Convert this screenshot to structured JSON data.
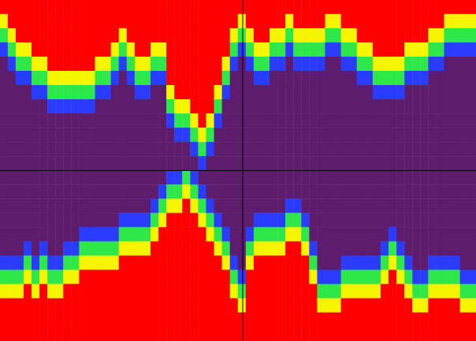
{
  "chart_data": {
    "type": "heatmap",
    "tick_labels": false,
    "color_range": [
      0,
      4
    ],
    "cells": [
      [
        4,
        3,
        2,
        1,
        0,
        0,
        0,
        0,
        0,
        0,
        0,
        0,
        0,
        0,
        0,
        0,
        0,
        0,
        1,
        2,
        3,
        4,
        4,
        4
      ],
      [
        4,
        4,
        3,
        2,
        1,
        0,
        0,
        0,
        0,
        0,
        0,
        0,
        0,
        0,
        0,
        0,
        0,
        0,
        1,
        2,
        3,
        4,
        4,
        4
      ],
      [
        4,
        4,
        4,
        3,
        2,
        1,
        0,
        0,
        0,
        0,
        0,
        0,
        0,
        0,
        0,
        0,
        0,
        0,
        1,
        2,
        3,
        4,
        4,
        4
      ],
      [
        4,
        4,
        4,
        3,
        2,
        1,
        0,
        0,
        0,
        0,
        0,
        0,
        0,
        0,
        0,
        0,
        0,
        1,
        2,
        3,
        4,
        4,
        4,
        4
      ],
      [
        4,
        4,
        4,
        4,
        3,
        2,
        1,
        0,
        0,
        0,
        0,
        0,
        0,
        0,
        0,
        0,
        0,
        0,
        1,
        2,
        3,
        4,
        4,
        4
      ],
      [
        4,
        4,
        4,
        4,
        3,
        2,
        1,
        0,
        0,
        0,
        0,
        0,
        0,
        0,
        0,
        0,
        0,
        1,
        2,
        3,
        4,
        4,
        4,
        4
      ],
      [
        4,
        4,
        4,
        4,
        4,
        3,
        2,
        1,
        0,
        0,
        0,
        0,
        0,
        0,
        0,
        0,
        0,
        0,
        1,
        2,
        3,
        4,
        4,
        4
      ],
      [
        4,
        4,
        4,
        4,
        4,
        3,
        2,
        1,
        0,
        0,
        0,
        0,
        0,
        0,
        0,
        0,
        0,
        0,
        1,
        2,
        3,
        4,
        4,
        4
      ],
      [
        4,
        4,
        4,
        4,
        4,
        3,
        2,
        1,
        0,
        0,
        0,
        0,
        0,
        0,
        0,
        0,
        0,
        1,
        2,
        3,
        4,
        4,
        4,
        4
      ],
      [
        4,
        4,
        4,
        4,
        4,
        3,
        2,
        1,
        0,
        0,
        0,
        0,
        0,
        0,
        0,
        0,
        0,
        1,
        2,
        3,
        4,
        4,
        4,
        4
      ],
      [
        4,
        4,
        4,
        4,
        4,
        3,
        2,
        1,
        0,
        0,
        0,
        0,
        0,
        0,
        0,
        0,
        1,
        2,
        3,
        4,
        4,
        4,
        4,
        4
      ],
      [
        4,
        4,
        4,
        4,
        4,
        3,
        2,
        1,
        0,
        0,
        0,
        0,
        0,
        0,
        0,
        0,
        1,
        2,
        3,
        4,
        4,
        4,
        4,
        4
      ],
      [
        4,
        4,
        4,
        4,
        3,
        2,
        1,
        0,
        0,
        0,
        0,
        0,
        0,
        0,
        0,
        0,
        1,
        2,
        3,
        4,
        4,
        4,
        4,
        4
      ],
      [
        4,
        4,
        4,
        4,
        3,
        2,
        1,
        0,
        0,
        0,
        0,
        0,
        0,
        0,
        0,
        0,
        1,
        2,
        3,
        4,
        4,
        4,
        4,
        4
      ],
      [
        4,
        4,
        4,
        3,
        2,
        1,
        0,
        0,
        0,
        0,
        0,
        0,
        0,
        0,
        0,
        0,
        1,
        2,
        3,
        4,
        4,
        4,
        4,
        4
      ],
      [
        4,
        4,
        3,
        2,
        1,
        0,
        0,
        0,
        0,
        0,
        0,
        0,
        0,
        0,
        0,
        1,
        2,
        3,
        4,
        4,
        4,
        4,
        4,
        4
      ],
      [
        4,
        4,
        4,
        3,
        2,
        1,
        0,
        0,
        0,
        0,
        0,
        0,
        0,
        0,
        0,
        1,
        2,
        3,
        4,
        4,
        4,
        4,
        4,
        4
      ],
      [
        4,
        4,
        4,
        4,
        3,
        2,
        1,
        0,
        0,
        0,
        0,
        0,
        0,
        0,
        0,
        1,
        2,
        3,
        4,
        4,
        4,
        4,
        4,
        4
      ],
      [
        4,
        4,
        4,
        4,
        3,
        2,
        1,
        0,
        0,
        0,
        0,
        0,
        0,
        0,
        0,
        1,
        2,
        3,
        4,
        4,
        4,
        4,
        4,
        4
      ],
      [
        4,
        4,
        4,
        3,
        2,
        1,
        0,
        0,
        0,
        0,
        0,
        0,
        0,
        0,
        1,
        2,
        3,
        4,
        4,
        4,
        4,
        4,
        4,
        4
      ],
      [
        4,
        4,
        4,
        3,
        2,
        1,
        0,
        0,
        0,
        0,
        0,
        0,
        0,
        1,
        2,
        3,
        4,
        4,
        4,
        4,
        4,
        4,
        4,
        4
      ],
      [
        4,
        4,
        4,
        4,
        4,
        4,
        3,
        2,
        1,
        0,
        0,
        0,
        1,
        2,
        3,
        4,
        4,
        4,
        4,
        4,
        4,
        4,
        4,
        4
      ],
      [
        4,
        4,
        4,
        4,
        4,
        4,
        4,
        3,
        2,
        1,
        0,
        0,
        1,
        2,
        3,
        4,
        4,
        4,
        4,
        4,
        4,
        4,
        4,
        4
      ],
      [
        4,
        4,
        4,
        4,
        4,
        4,
        4,
        3,
        2,
        1,
        0,
        0,
        2,
        3,
        4,
        4,
        4,
        4,
        4,
        4,
        4,
        4,
        4,
        4
      ],
      [
        4,
        4,
        4,
        4,
        4,
        4,
        4,
        4,
        3,
        2,
        1,
        0,
        1,
        2,
        3,
        4,
        4,
        4,
        4,
        4,
        4,
        4,
        4,
        4
      ],
      [
        4,
        4,
        4,
        4,
        4,
        4,
        4,
        4,
        4,
        3,
        2,
        1,
        0,
        1,
        2,
        3,
        4,
        4,
        4,
        4,
        4,
        4,
        4,
        4
      ],
      [
        4,
        4,
        4,
        4,
        4,
        4,
        4,
        4,
        3,
        2,
        1,
        0,
        0,
        0,
        1,
        2,
        3,
        4,
        4,
        4,
        4,
        4,
        4,
        4
      ],
      [
        4,
        4,
        4,
        4,
        4,
        4,
        3,
        2,
        1,
        0,
        0,
        0,
        0,
        0,
        0,
        1,
        2,
        3,
        4,
        4,
        4,
        4,
        4,
        4
      ],
      [
        4,
        4,
        4,
        4,
        3,
        2,
        1,
        0,
        0,
        0,
        0,
        0,
        0,
        0,
        0,
        0,
        1,
        2,
        3,
        4,
        4,
        4,
        4,
        4
      ],
      [
        4,
        4,
        3,
        2,
        1,
        0,
        0,
        0,
        0,
        0,
        0,
        0,
        0,
        0,
        0,
        0,
        0,
        0,
        1,
        2,
        3,
        4,
        4,
        4
      ],
      [
        4,
        3,
        2,
        1,
        0,
        0,
        0,
        0,
        0,
        0,
        0,
        0,
        0,
        0,
        0,
        0,
        0,
        0,
        0,
        1,
        2,
        3,
        4,
        4
      ],
      [
        4,
        4,
        3,
        2,
        1,
        0,
        0,
        0,
        0,
        0,
        0,
        0,
        0,
        0,
        0,
        0,
        1,
        2,
        3,
        4,
        4,
        4,
        4,
        4
      ],
      [
        4,
        4,
        4,
        3,
        2,
        1,
        0,
        0,
        0,
        0,
        0,
        0,
        0,
        0,
        0,
        1,
        2,
        3,
        4,
        4,
        4,
        4,
        4,
        4
      ],
      [
        4,
        4,
        4,
        3,
        2,
        1,
        0,
        0,
        0,
        0,
        0,
        0,
        0,
        0,
        0,
        1,
        2,
        3,
        4,
        4,
        4,
        4,
        4,
        4
      ],
      [
        4,
        4,
        3,
        2,
        1,
        0,
        0,
        0,
        0,
        0,
        0,
        0,
        0,
        0,
        0,
        1,
        2,
        3,
        4,
        4,
        4,
        4,
        4,
        4
      ],
      [
        4,
        4,
        3,
        2,
        1,
        0,
        0,
        0,
        0,
        0,
        0,
        0,
        0,
        0,
        0,
        1,
        2,
        3,
        4,
        4,
        4,
        4,
        4,
        4
      ],
      [
        4,
        3,
        2,
        1,
        0,
        0,
        0,
        0,
        0,
        0,
        0,
        0,
        0,
        0,
        1,
        2,
        3,
        4,
        4,
        4,
        4,
        4,
        4,
        4
      ],
      [
        4,
        4,
        3,
        2,
        1,
        0,
        0,
        0,
        0,
        0,
        0,
        0,
        0,
        0,
        1,
        2,
        3,
        4,
        4,
        4,
        4,
        4,
        4,
        4
      ],
      [
        4,
        4,
        3,
        2,
        1,
        0,
        0,
        0,
        0,
        0,
        0,
        0,
        0,
        0,
        0,
        1,
        2,
        3,
        4,
        4,
        4,
        4,
        4,
        4
      ],
      [
        4,
        4,
        3,
        2,
        1,
        0,
        0,
        0,
        0,
        0,
        0,
        0,
        0,
        0,
        0,
        0,
        0,
        1,
        2,
        3,
        4,
        4,
        4,
        4
      ],
      [
        4,
        4,
        3,
        2,
        1,
        0,
        0,
        0,
        0,
        0,
        0,
        0,
        0,
        0,
        0,
        0,
        0,
        0,
        0,
        1,
        2,
        3,
        4,
        4
      ],
      [
        4,
        3,
        2,
        1,
        0,
        0,
        0,
        0,
        0,
        0,
        0,
        0,
        0,
        0,
        0,
        0,
        0,
        0,
        0,
        1,
        2,
        3,
        4,
        4
      ],
      [
        4,
        3,
        2,
        1,
        0,
        0,
        0,
        0,
        0,
        0,
        0,
        0,
        0,
        0,
        0,
        0,
        0,
        0,
        0,
        1,
        2,
        3,
        4,
        4
      ],
      [
        4,
        4,
        3,
        2,
        1,
        0,
        0,
        0,
        0,
        0,
        0,
        0,
        0,
        0,
        0,
        0,
        0,
        0,
        1,
        2,
        3,
        4,
        4,
        4
      ],
      [
        4,
        4,
        3,
        2,
        1,
        0,
        0,
        0,
        0,
        0,
        0,
        0,
        0,
        0,
        0,
        0,
        0,
        0,
        1,
        2,
        3,
        4,
        4,
        4
      ],
      [
        4,
        4,
        4,
        3,
        2,
        1,
        0,
        0,
        0,
        0,
        0,
        0,
        0,
        0,
        0,
        0,
        0,
        0,
        1,
        2,
        3,
        4,
        4,
        4
      ],
      [
        4,
        4,
        4,
        3,
        2,
        1,
        0,
        0,
        0,
        0,
        0,
        0,
        0,
        0,
        0,
        0,
        0,
        0,
        1,
        2,
        3,
        4,
        4,
        4
      ],
      [
        4,
        4,
        4,
        4,
        3,
        2,
        1,
        0,
        0,
        0,
        0,
        0,
        0,
        0,
        0,
        0,
        0,
        0,
        1,
        2,
        3,
        4,
        4,
        4
      ],
      [
        4,
        4,
        4,
        4,
        3,
        2,
        1,
        0,
        0,
        0,
        0,
        0,
        0,
        0,
        0,
        0,
        0,
        1,
        2,
        3,
        4,
        4,
        4,
        4
      ],
      [
        4,
        4,
        4,
        4,
        3,
        2,
        1,
        0,
        0,
        0,
        0,
        0,
        0,
        0,
        0,
        0,
        1,
        2,
        3,
        4,
        4,
        4,
        4,
        4
      ],
      [
        4,
        4,
        4,
        4,
        3,
        2,
        1,
        0,
        0,
        0,
        0,
        0,
        0,
        0,
        0,
        0,
        0,
        1,
        2,
        3,
        4,
        4,
        4,
        4
      ],
      [
        4,
        4,
        4,
        3,
        2,
        1,
        0,
        0,
        0,
        0,
        0,
        0,
        0,
        0,
        0,
        0,
        0,
        0,
        1,
        2,
        3,
        4,
        4,
        4
      ],
      [
        4,
        4,
        4,
        3,
        2,
        1,
        0,
        0,
        0,
        0,
        0,
        0,
        0,
        0,
        0,
        0,
        0,
        0,
        0,
        1,
        2,
        3,
        4,
        4
      ],
      [
        4,
        4,
        4,
        3,
        2,
        1,
        0,
        0,
        0,
        0,
        0,
        0,
        0,
        0,
        0,
        0,
        0,
        0,
        0,
        1,
        2,
        3,
        4,
        4
      ],
      [
        4,
        4,
        3,
        2,
        1,
        0,
        0,
        0,
        0,
        0,
        0,
        0,
        0,
        0,
        0,
        0,
        0,
        0,
        1,
        2,
        3,
        4,
        4,
        4
      ],
      [
        4,
        4,
        3,
        2,
        1,
        0,
        0,
        0,
        0,
        0,
        0,
        0,
        0,
        0,
        0,
        0,
        0,
        0,
        1,
        2,
        3,
        4,
        4,
        4
      ],
      [
        4,
        3,
        2,
        1,
        0,
        0,
        0,
        0,
        0,
        0,
        0,
        0,
        0,
        0,
        0,
        0,
        0,
        0,
        1,
        2,
        3,
        4,
        4,
        4
      ],
      [
        4,
        3,
        2,
        1,
        0,
        0,
        0,
        0,
        0,
        0,
        0,
        0,
        0,
        0,
        0,
        0,
        0,
        0,
        1,
        2,
        3,
        4,
        4,
        4
      ],
      [
        4,
        3,
        2,
        1,
        0,
        0,
        0,
        0,
        0,
        0,
        0,
        0,
        0,
        0,
        0,
        0,
        0,
        0,
        0,
        1,
        2,
        3,
        4,
        4
      ],
      [
        4,
        3,
        2,
        1,
        0,
        0,
        0,
        0,
        0,
        0,
        0,
        0,
        0,
        0,
        0,
        0,
        0,
        0,
        0,
        1,
        2,
        3,
        4,
        4
      ]
    ]
  }
}
